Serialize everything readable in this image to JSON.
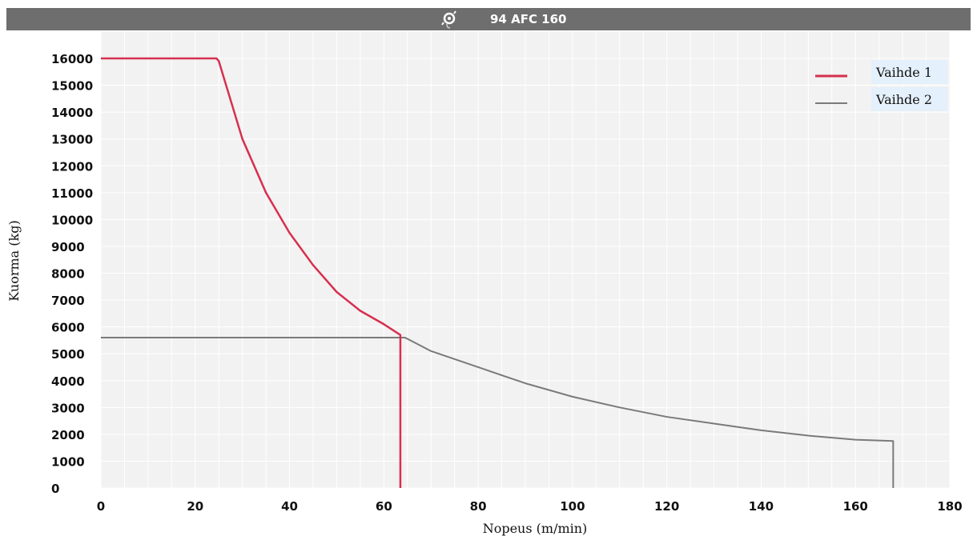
{
  "title_bar": {
    "icon": "gear-hook-icon",
    "text": "94 AFC 160",
    "background": "#6e6e6e"
  },
  "chart_data": {
    "type": "line",
    "title": "94 AFC 160",
    "xlabel": "Nopeus (m/min)",
    "ylabel": "Kuorma (kg)",
    "xlim": [
      0,
      180
    ],
    "ylim": [
      0,
      16000
    ],
    "x_ticks": [
      0,
      20,
      40,
      60,
      80,
      100,
      120,
      140,
      160,
      180
    ],
    "y_ticks": [
      0,
      1000,
      2000,
      3000,
      4000,
      5000,
      6000,
      7000,
      8000,
      9000,
      10000,
      11000,
      12000,
      13000,
      14000,
      15000,
      16000
    ],
    "grid": true,
    "legend_position": "top-right",
    "series": [
      {
        "name": "Vaihde 1",
        "color": "#d6304f",
        "x": [
          0,
          24.5,
          25,
          30,
          35,
          40,
          45,
          50,
          55,
          60,
          63.5,
          63.5
        ],
        "y": [
          16000,
          16000,
          15900,
          13000,
          11000,
          9500,
          8300,
          7300,
          6600,
          6100,
          5700,
          0
        ]
      },
      {
        "name": "Vaihde 2",
        "color": "#7a7a7a",
        "x": [
          0,
          64.5,
          70,
          80,
          90,
          100,
          110,
          120,
          130,
          140,
          150,
          160,
          168,
          168
        ],
        "y": [
          5600,
          5600,
          5100,
          4500,
          3900,
          3400,
          3000,
          2650,
          2400,
          2150,
          1950,
          1800,
          1750,
          0
        ]
      }
    ]
  },
  "colors": {
    "plot_background": "#f2f2f2",
    "grid": "#ffffff",
    "legend_label_background": "#e4f0fb"
  }
}
